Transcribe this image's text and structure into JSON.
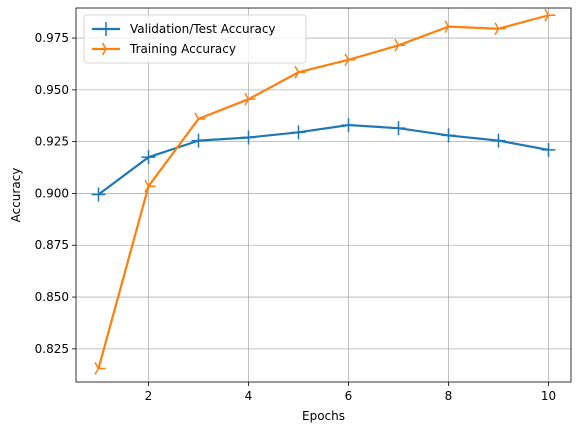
{
  "chart_data": {
    "type": "line",
    "title": "",
    "xlabel": "Epochs",
    "ylabel": "Accuracy",
    "xlim": [
      0.55,
      10.45
    ],
    "ylim": [
      0.809,
      0.9895
    ],
    "xticks": [
      2,
      4,
      6,
      8,
      10
    ],
    "yticks": [
      0.825,
      0.85,
      0.875,
      0.9,
      0.925,
      0.95,
      0.975
    ],
    "xtick_labels": [
      "2",
      "4",
      "6",
      "8",
      "10"
    ],
    "ytick_labels": [
      "0.825",
      "0.850",
      "0.875",
      "0.900",
      "0.925",
      "0.950",
      "0.975"
    ],
    "grid": true,
    "legend_position": "top-left",
    "x": [
      1,
      2,
      3,
      4,
      5,
      6,
      7,
      8,
      9,
      10
    ],
    "series": [
      {
        "name": "Validation/Test Accuracy",
        "color": "#1f77b4",
        "marker": "plus",
        "values": [
          0.8995,
          0.9175,
          0.9255,
          0.927,
          0.9295,
          0.933,
          0.9315,
          0.928,
          0.9255,
          0.921
        ]
      },
      {
        "name": "Training Accuracy",
        "color": "#ff7f0e",
        "marker": "tri-right",
        "values": [
          0.8155,
          0.9035,
          0.936,
          0.9455,
          0.9585,
          0.9645,
          0.9715,
          0.9805,
          0.9795,
          0.986
        ]
      }
    ]
  }
}
